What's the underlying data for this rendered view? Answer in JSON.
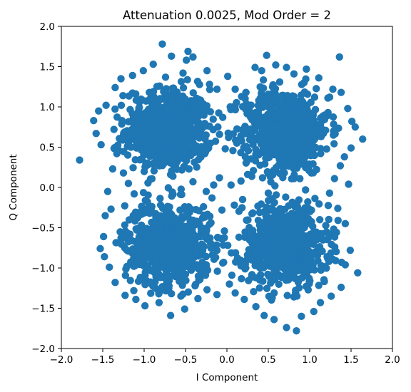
{
  "chart_data": {
    "type": "scatter",
    "title": "Attenuation 0.0025, Mod Order = 2",
    "xlabel": "I Component",
    "ylabel": "Q Component",
    "xlim": [
      -2.0,
      2.0
    ],
    "ylim": [
      -2.0,
      2.0
    ],
    "xticks": [
      -2.0,
      -1.5,
      -1.0,
      -0.5,
      0.0,
      0.5,
      1.0,
      1.5,
      2.0
    ],
    "yticks": [
      -2.0,
      -1.5,
      -1.0,
      -0.5,
      0.0,
      0.5,
      1.0,
      1.5,
      2.0
    ],
    "xtick_labels": [
      "−2.0",
      "−1.5",
      "−1.0",
      "−0.5",
      "0.0",
      "0.5",
      "1.0",
      "1.5",
      "2.0"
    ],
    "ytick_labels": [
      "−2.0",
      "−1.5",
      "−1.0",
      "−0.5",
      "0.0",
      "0.5",
      "1.0",
      "1.5",
      "2.0"
    ],
    "grid": false,
    "marker_color": "#1f77b4",
    "series": [
      {
        "clusters": [
          {
            "center": [
              -0.71,
              0.71
            ],
            "spread": 0.26
          },
          {
            "center": [
              0.71,
              0.71
            ],
            "spread": 0.26
          },
          {
            "center": [
              -0.71,
              -0.71
            ],
            "spread": 0.26
          },
          {
            "center": [
              0.71,
              -0.71
            ],
            "spread": 0.26
          }
        ],
        "points": [
          [
            -1.78,
            0.34
          ],
          [
            -1.61,
            0.83
          ],
          [
            -1.58,
            0.67
          ],
          [
            -1.52,
            0.53
          ],
          [
            -1.55,
            0.95
          ],
          [
            -1.46,
            1.02
          ],
          [
            -1.35,
            1.24
          ],
          [
            -1.28,
            1.35
          ],
          [
            -1.14,
            1.39
          ],
          [
            -1.01,
            1.45
          ],
          [
            -0.89,
            1.53
          ],
          [
            -0.78,
            1.78
          ],
          [
            -0.67,
            1.63
          ],
          [
            -0.53,
            1.42
          ],
          [
            -0.49,
            1.58
          ],
          [
            -0.41,
            1.62
          ],
          [
            -0.47,
            1.69
          ],
          [
            -0.24,
            1.45
          ],
          [
            -0.21,
            1.28
          ],
          [
            -0.12,
            1.22
          ],
          [
            0.01,
            1.38
          ],
          [
            0.1,
            1.22
          ],
          [
            0.23,
            1.18
          ],
          [
            0.34,
            1.49
          ],
          [
            0.42,
            1.45
          ],
          [
            0.48,
            1.64
          ],
          [
            0.59,
            1.52
          ],
          [
            0.72,
            1.49
          ],
          [
            0.81,
            1.41
          ],
          [
            0.96,
            1.47
          ],
          [
            1.11,
            1.36
          ],
          [
            1.36,
            1.62
          ],
          [
            1.28,
            1.22
          ],
          [
            1.38,
            1.18
          ],
          [
            1.46,
            0.98
          ],
          [
            1.51,
            0.82
          ],
          [
            1.55,
            0.75
          ],
          [
            1.64,
            0.6
          ],
          [
            1.5,
            0.49
          ],
          [
            1.42,
            0.38
          ],
          [
            1.37,
            0.27
          ],
          [
            1.3,
            0.11
          ],
          [
            1.47,
            0.04
          ],
          [
            1.24,
            -0.07
          ],
          [
            1.34,
            -0.26
          ],
          [
            1.43,
            -0.45
          ],
          [
            1.49,
            -0.78
          ],
          [
            1.43,
            -0.96
          ],
          [
            1.58,
            -1.06
          ],
          [
            1.38,
            -1.24
          ],
          [
            1.26,
            -1.35
          ],
          [
            1.13,
            -1.43
          ],
          [
            1.05,
            -1.54
          ],
          [
            0.9,
            -1.6
          ],
          [
            0.84,
            -1.78
          ],
          [
            0.72,
            -1.74
          ],
          [
            0.57,
            -1.64
          ],
          [
            0.45,
            -1.59
          ],
          [
            0.35,
            -1.48
          ],
          [
            0.21,
            -1.39
          ],
          [
            0.1,
            -1.31
          ],
          [
            0.03,
            -1.2
          ],
          [
            -0.12,
            -1.33
          ],
          [
            -0.24,
            -1.27
          ],
          [
            -0.35,
            -1.38
          ],
          [
            -0.51,
            -1.51
          ],
          [
            -0.68,
            -1.59
          ],
          [
            -0.82,
            -1.43
          ],
          [
            -0.99,
            -1.47
          ],
          [
            -1.1,
            -1.39
          ],
          [
            -1.23,
            -1.34
          ],
          [
            -1.35,
            -1.18
          ],
          [
            -1.42,
            -0.99
          ],
          [
            -1.48,
            -0.86
          ],
          [
            -1.53,
            -0.76
          ],
          [
            -1.49,
            -0.61
          ],
          [
            -1.47,
            -0.35
          ],
          [
            -1.4,
            -0.27
          ],
          [
            -1.44,
            -0.05
          ],
          [
            -1.38,
            0.23
          ],
          [
            -1.33,
            0.42
          ],
          [
            -1.25,
            0.18
          ],
          [
            -1.19,
            0.05
          ],
          [
            -1.12,
            -0.08
          ],
          [
            -0.96,
            -0.18
          ],
          [
            -0.68,
            0.16
          ],
          [
            -0.41,
            0.07
          ],
          [
            -0.25,
            -0.05
          ],
          [
            -0.16,
            0.03
          ],
          [
            -0.09,
            0.12
          ],
          [
            0.05,
            0.03
          ],
          [
            0.17,
            0.08
          ],
          [
            0.19,
            -0.15
          ],
          [
            0.09,
            -0.22
          ],
          [
            -0.06,
            -0.28
          ],
          [
            -0.18,
            -0.13
          ],
          [
            0.32,
            0.21
          ],
          [
            0.43,
            0.12
          ],
          [
            0.58,
            0.02
          ],
          [
            0.81,
            0.11
          ],
          [
            1.02,
            0.18
          ],
          [
            0.95,
            -0.03
          ],
          [
            0.71,
            -0.12
          ],
          [
            0.5,
            -0.07
          ],
          [
            -0.02,
            0.48
          ],
          [
            0.02,
            0.62
          ],
          [
            -0.05,
            0.87
          ],
          [
            0.04,
            1.0
          ],
          [
            -0.03,
            -0.54
          ],
          [
            0.01,
            -0.72
          ],
          [
            -0.04,
            -0.93
          ],
          [
            0.06,
            -1.09
          ],
          [
            0.12,
            0.55
          ],
          [
            -0.12,
            -0.78
          ],
          [
            0.27,
            0.96
          ],
          [
            -0.2,
            0.94
          ],
          [
            0.3,
            -0.9
          ],
          [
            -0.25,
            -0.96
          ]
        ]
      }
    ]
  }
}
